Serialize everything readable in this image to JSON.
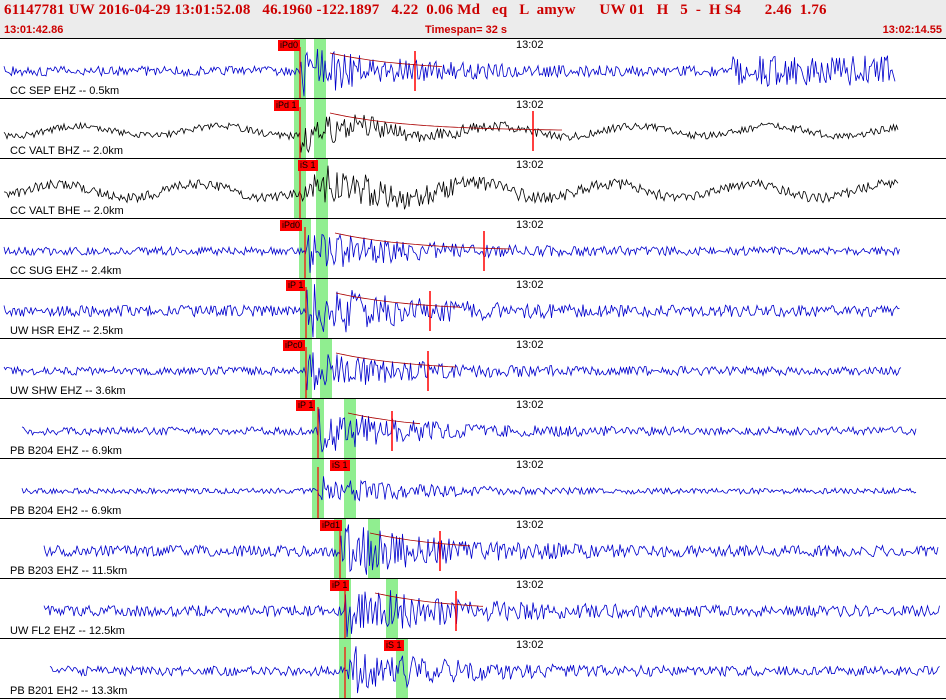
{
  "header": {
    "title": "61147781 UW 2016-04-29 13:01:52.08   46.1960 -122.1897   4.22  0.06 Md   eq   L  amyw      UW 01   H   5  -  H S4      2.46  1.76",
    "start_time": "13:01:42.86",
    "timespan": "Timespan=  32 s",
    "end_time": "13:02:14.55"
  },
  "colors": {
    "trace_blue": "#0000cc",
    "trace_black": "#000000",
    "pick_red": "#ff0000",
    "window_green": "#90ee90",
    "header_red": "#cc0000"
  },
  "traces": [
    {
      "label": "CC SEP EHZ -- 0.5km",
      "minute": "13:02",
      "pick": "iPd0",
      "color": "blue",
      "amp": 14
    },
    {
      "label": "CC VALT BHZ -- 2.0km",
      "minute": "13:02",
      "pick": "iPd 1",
      "color": "black",
      "amp": 10
    },
    {
      "label": "CC VALT BHE -- 2.0km",
      "minute": "13:02",
      "pick": "iS 1",
      "color": "black",
      "amp": 14
    },
    {
      "label": "CC SUG EHZ -- 2.4km",
      "minute": "13:02",
      "pick": "iPd0",
      "color": "blue",
      "amp": 12
    },
    {
      "label": "UW HSR EHZ -- 2.5km",
      "minute": "13:02",
      "pick": "iP 1",
      "color": "blue",
      "amp": 16
    },
    {
      "label": "UW SHW EHZ -- 3.6km",
      "minute": "13:02",
      "pick": "iPc0",
      "color": "blue",
      "amp": 12
    },
    {
      "label": "PB B204 EHZ -- 6.9km",
      "minute": "13:02",
      "pick": "iP 1",
      "color": "blue",
      "amp": 12
    },
    {
      "label": "PB B204 EH2 -- 6.9km",
      "minute": "13:02",
      "pick": "iS 1",
      "color": "blue",
      "amp": 8
    },
    {
      "label": "PB B203 EHZ -- 11.5km",
      "minute": "13:02",
      "pick": "iPd1",
      "color": "blue",
      "amp": 16
    },
    {
      "label": "UW FL2 EHZ -- 12.5km",
      "minute": "13:02",
      "pick": "iP 1",
      "color": "blue",
      "amp": 16
    },
    {
      "label": "PB B201 EH2 -- 13.3km",
      "minute": "13:02",
      "pick": "iS 1",
      "color": "blue",
      "amp": 14
    }
  ]
}
